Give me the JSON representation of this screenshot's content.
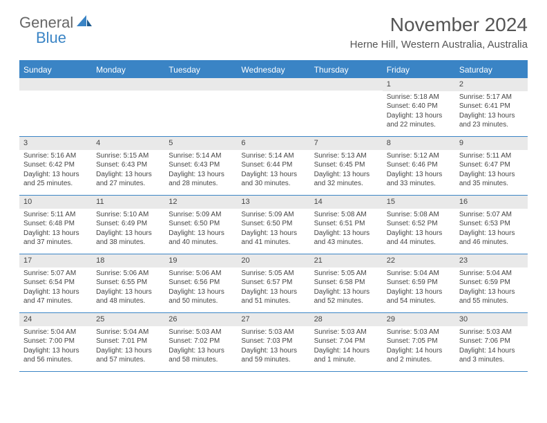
{
  "brand": {
    "part1": "General",
    "part2": "Blue"
  },
  "header": {
    "month_title": "November 2024",
    "location": "Herne Hill, Western Australia, Australia"
  },
  "colors": {
    "accent": "#3a84c5",
    "header_row_bg": "#e9e9e9",
    "text": "#444444",
    "title_text": "#555555",
    "background": "#ffffff"
  },
  "days_of_week": [
    "Sunday",
    "Monday",
    "Tuesday",
    "Wednesday",
    "Thursday",
    "Friday",
    "Saturday"
  ],
  "calendar": {
    "type": "table",
    "weeks": [
      [
        null,
        null,
        null,
        null,
        null,
        {
          "n": "1",
          "sr": "5:18 AM",
          "ss": "6:40 PM",
          "dl": "13 hours and 22 minutes."
        },
        {
          "n": "2",
          "sr": "5:17 AM",
          "ss": "6:41 PM",
          "dl": "13 hours and 23 minutes."
        }
      ],
      [
        {
          "n": "3",
          "sr": "5:16 AM",
          "ss": "6:42 PM",
          "dl": "13 hours and 25 minutes."
        },
        {
          "n": "4",
          "sr": "5:15 AM",
          "ss": "6:43 PM",
          "dl": "13 hours and 27 minutes."
        },
        {
          "n": "5",
          "sr": "5:14 AM",
          "ss": "6:43 PM",
          "dl": "13 hours and 28 minutes."
        },
        {
          "n": "6",
          "sr": "5:14 AM",
          "ss": "6:44 PM",
          "dl": "13 hours and 30 minutes."
        },
        {
          "n": "7",
          "sr": "5:13 AM",
          "ss": "6:45 PM",
          "dl": "13 hours and 32 minutes."
        },
        {
          "n": "8",
          "sr": "5:12 AM",
          "ss": "6:46 PM",
          "dl": "13 hours and 33 minutes."
        },
        {
          "n": "9",
          "sr": "5:11 AM",
          "ss": "6:47 PM",
          "dl": "13 hours and 35 minutes."
        }
      ],
      [
        {
          "n": "10",
          "sr": "5:11 AM",
          "ss": "6:48 PM",
          "dl": "13 hours and 37 minutes."
        },
        {
          "n": "11",
          "sr": "5:10 AM",
          "ss": "6:49 PM",
          "dl": "13 hours and 38 minutes."
        },
        {
          "n": "12",
          "sr": "5:09 AM",
          "ss": "6:50 PM",
          "dl": "13 hours and 40 minutes."
        },
        {
          "n": "13",
          "sr": "5:09 AM",
          "ss": "6:50 PM",
          "dl": "13 hours and 41 minutes."
        },
        {
          "n": "14",
          "sr": "5:08 AM",
          "ss": "6:51 PM",
          "dl": "13 hours and 43 minutes."
        },
        {
          "n": "15",
          "sr": "5:08 AM",
          "ss": "6:52 PM",
          "dl": "13 hours and 44 minutes."
        },
        {
          "n": "16",
          "sr": "5:07 AM",
          "ss": "6:53 PM",
          "dl": "13 hours and 46 minutes."
        }
      ],
      [
        {
          "n": "17",
          "sr": "5:07 AM",
          "ss": "6:54 PM",
          "dl": "13 hours and 47 minutes."
        },
        {
          "n": "18",
          "sr": "5:06 AM",
          "ss": "6:55 PM",
          "dl": "13 hours and 48 minutes."
        },
        {
          "n": "19",
          "sr": "5:06 AM",
          "ss": "6:56 PM",
          "dl": "13 hours and 50 minutes."
        },
        {
          "n": "20",
          "sr": "5:05 AM",
          "ss": "6:57 PM",
          "dl": "13 hours and 51 minutes."
        },
        {
          "n": "21",
          "sr": "5:05 AM",
          "ss": "6:58 PM",
          "dl": "13 hours and 52 minutes."
        },
        {
          "n": "22",
          "sr": "5:04 AM",
          "ss": "6:59 PM",
          "dl": "13 hours and 54 minutes."
        },
        {
          "n": "23",
          "sr": "5:04 AM",
          "ss": "6:59 PM",
          "dl": "13 hours and 55 minutes."
        }
      ],
      [
        {
          "n": "24",
          "sr": "5:04 AM",
          "ss": "7:00 PM",
          "dl": "13 hours and 56 minutes."
        },
        {
          "n": "25",
          "sr": "5:04 AM",
          "ss": "7:01 PM",
          "dl": "13 hours and 57 minutes."
        },
        {
          "n": "26",
          "sr": "5:03 AM",
          "ss": "7:02 PM",
          "dl": "13 hours and 58 minutes."
        },
        {
          "n": "27",
          "sr": "5:03 AM",
          "ss": "7:03 PM",
          "dl": "13 hours and 59 minutes."
        },
        {
          "n": "28",
          "sr": "5:03 AM",
          "ss": "7:04 PM",
          "dl": "14 hours and 1 minute."
        },
        {
          "n": "29",
          "sr": "5:03 AM",
          "ss": "7:05 PM",
          "dl": "14 hours and 2 minutes."
        },
        {
          "n": "30",
          "sr": "5:03 AM",
          "ss": "7:06 PM",
          "dl": "14 hours and 3 minutes."
        }
      ]
    ]
  },
  "labels": {
    "sunrise_prefix": "Sunrise: ",
    "sunset_prefix": "Sunset: ",
    "daylight_prefix": "Daylight: "
  }
}
